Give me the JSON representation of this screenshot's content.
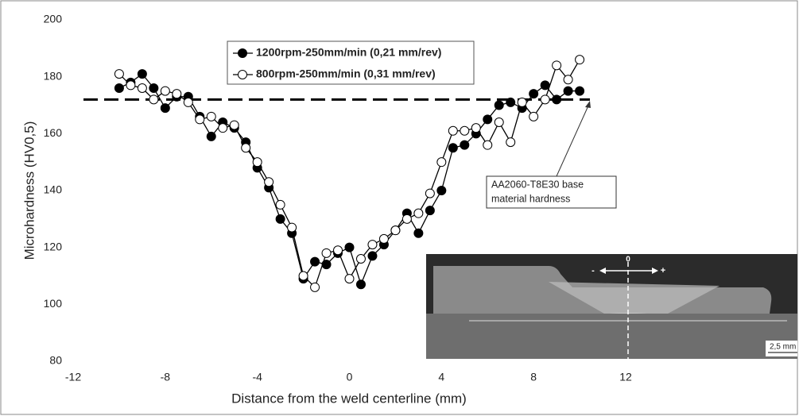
{
  "chart_data": {
    "type": "line",
    "x_label": "Distance from the weld centerline (mm)",
    "y_label": "Microhardness (HV0,5)",
    "x": [
      -10,
      -9.5,
      -9,
      -8.5,
      -8,
      -7.5,
      -7,
      -6.5,
      -6,
      -5.5,
      -5,
      -4.5,
      -4,
      -3.5,
      -3,
      -2.5,
      -2,
      -1.5,
      -1,
      -0.5,
      0,
      0.5,
      1,
      1.5,
      2,
      2.5,
      3,
      3.5,
      4,
      4.5,
      5,
      5.5,
      6,
      6.5,
      7,
      7.5,
      8,
      8.5,
      9,
      9.5,
      10
    ],
    "series": [
      {
        "name": "1200rpm-250mm/min (0,21 mm/rev)",
        "color": "#000000",
        "marker_fill": "#000000",
        "values": [
          176,
          178,
          181,
          176,
          169,
          173,
          173,
          166,
          159,
          164,
          162,
          157,
          148,
          141,
          130,
          125,
          109,
          115,
          114,
          118,
          120,
          107,
          117,
          121,
          126,
          132,
          125,
          133,
          140,
          155,
          156,
          160,
          165,
          170,
          171,
          169,
          174,
          177,
          172,
          175,
          175
        ]
      },
      {
        "name": "800rpm-250mm/min (0,31 mm/rev)",
        "color": "#000000",
        "marker_fill": "#ffffff",
        "values": [
          181,
          177,
          176,
          172,
          175,
          174,
          171,
          165,
          166,
          162,
          163,
          155,
          150,
          143,
          135,
          127,
          110,
          106,
          118,
          119,
          109,
          116,
          121,
          123,
          126,
          130,
          132,
          139,
          150,
          161,
          161,
          162,
          156,
          164,
          157,
          171,
          166,
          172,
          184,
          179,
          186
        ]
      }
    ],
    "reference_line": {
      "value": 172,
      "label": [
        "AA2060-T8E30 base",
        "material hardness"
      ]
    },
    "xlim": [
      -12,
      12
    ],
    "xticks": [
      -12,
      -8,
      -4,
      0,
      4,
      8,
      12
    ],
    "ylim": [
      80,
      200
    ],
    "yticks": [
      80,
      100,
      120,
      140,
      160,
      180,
      200
    ],
    "grid": false,
    "legend": "top-center",
    "inset": {
      "center_label": "0",
      "minus_label": "-",
      "plus_label": "+",
      "scale_label": "2,5 mm"
    }
  }
}
